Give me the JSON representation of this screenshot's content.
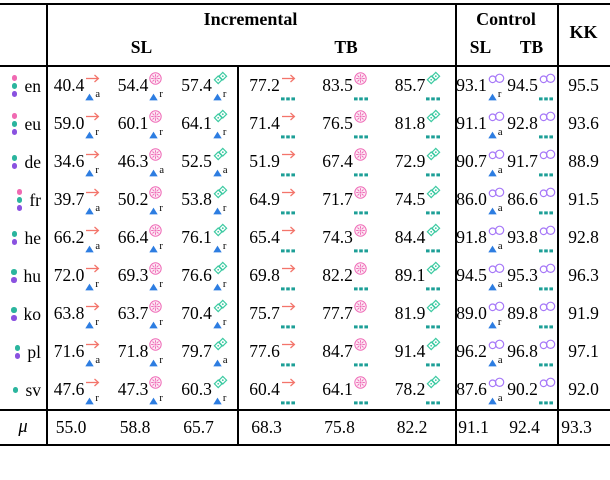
{
  "header": {
    "incremental": "Incremental",
    "control": "Control",
    "kk": "KK",
    "sl1": "SL",
    "tb1": "TB",
    "sl2": "SL",
    "tb2": "TB"
  },
  "colors": {
    "pink": "#f06ab2",
    "teal": "#2bb59e",
    "purple": "#8a52e0",
    "arrow": "#f3756b",
    "flower": "#ef6db8",
    "diamond": "#3dcaa2",
    "loop": "#a678f8",
    "triangle": "#2d7de1",
    "dashes": "#1d9f97"
  },
  "icons": {
    "arrow-icon": "→",
    "flower-icon": "✳",
    "diamond-icon": "❖",
    "loop-icon": "➿",
    "triangle-icon": "▲",
    "dashes-icon": "┅"
  },
  "rows": [
    {
      "lang": "en",
      "dots": [
        "pink",
        "teal",
        "purple"
      ],
      "cells": [
        {
          "v": "40.4",
          "sup": "arrow",
          "sub": "triangle",
          "letter": "a"
        },
        {
          "v": "54.4",
          "sup": "flower",
          "sub": "triangle",
          "letter": "r"
        },
        {
          "v": "57.4",
          "sup": "diamond",
          "sub": "triangle",
          "letter": "r"
        },
        {
          "v": "77.2",
          "sup": "arrow",
          "sub": "dashes"
        },
        {
          "v": "83.5",
          "sup": "flower",
          "sub": "dashes"
        },
        {
          "v": "85.7",
          "sup": "diamond",
          "sub": "dashes"
        },
        {
          "v": "93.1",
          "sup": "loop",
          "sub": "triangle",
          "letter": "r"
        },
        {
          "v": "94.5",
          "sup": "loop",
          "sub": "dashes"
        },
        {
          "v": "95.5"
        }
      ]
    },
    {
      "lang": "eu",
      "dots": [
        "pink",
        "teal",
        "purple"
      ],
      "cells": [
        {
          "v": "59.0",
          "sup": "arrow",
          "sub": "triangle",
          "letter": "r"
        },
        {
          "v": "60.1",
          "sup": "flower",
          "sub": "triangle",
          "letter": "r"
        },
        {
          "v": "64.1",
          "sup": "diamond",
          "sub": "triangle",
          "letter": "r"
        },
        {
          "v": "71.4",
          "sup": "arrow",
          "sub": "dashes"
        },
        {
          "v": "76.5",
          "sup": "flower",
          "sub": "dashes"
        },
        {
          "v": "81.8",
          "sup": "diamond",
          "sub": "dashes"
        },
        {
          "v": "91.1",
          "sup": "loop",
          "sub": "triangle",
          "letter": "a"
        },
        {
          "v": "92.8",
          "sup": "loop",
          "sub": "dashes"
        },
        {
          "v": "93.6"
        }
      ]
    },
    {
      "lang": "de",
      "dots": [
        "teal",
        "purple"
      ],
      "cells": [
        {
          "v": "34.6",
          "sup": "arrow",
          "sub": "triangle",
          "letter": "r"
        },
        {
          "v": "46.3",
          "sup": "flower",
          "sub": "triangle",
          "letter": "a"
        },
        {
          "v": "52.5",
          "sup": "diamond",
          "sub": "triangle",
          "letter": "a"
        },
        {
          "v": "51.9",
          "sup": "arrow",
          "sub": "dashes"
        },
        {
          "v": "67.4",
          "sup": "flower",
          "sub": "dashes"
        },
        {
          "v": "72.9",
          "sup": "diamond",
          "sub": "dashes"
        },
        {
          "v": "90.7",
          "sup": "loop",
          "sub": "triangle",
          "letter": "a"
        },
        {
          "v": "91.7",
          "sup": "loop",
          "sub": "dashes"
        },
        {
          "v": "88.9"
        }
      ]
    },
    {
      "lang": "fr",
      "dots": [
        "pink",
        "teal",
        "purple"
      ],
      "cells": [
        {
          "v": "39.7",
          "sup": "arrow",
          "sub": "triangle",
          "letter": "a"
        },
        {
          "v": "50.2",
          "sup": "flower",
          "sub": "triangle",
          "letter": "r"
        },
        {
          "v": "53.8",
          "sup": "diamond",
          "sub": "triangle",
          "letter": "r"
        },
        {
          "v": "64.9",
          "sup": "arrow",
          "sub": "dashes"
        },
        {
          "v": "71.7",
          "sup": "flower",
          "sub": "dashes"
        },
        {
          "v": "74.5",
          "sup": "diamond",
          "sub": "dashes"
        },
        {
          "v": "86.0",
          "sup": "loop",
          "sub": "triangle",
          "letter": "a"
        },
        {
          "v": "86.6",
          "sup": "loop",
          "sub": "dashes"
        },
        {
          "v": "91.5"
        }
      ]
    },
    {
      "lang": "he",
      "dots": [
        "teal",
        "purple"
      ],
      "cells": [
        {
          "v": "66.2",
          "sup": "arrow",
          "sub": "triangle",
          "letter": "a"
        },
        {
          "v": "66.4",
          "sup": "flower",
          "sub": "triangle",
          "letter": "r"
        },
        {
          "v": "76.1",
          "sup": "diamond",
          "sub": "triangle",
          "letter": "r"
        },
        {
          "v": "65.4",
          "sup": "arrow",
          "sub": "dashes"
        },
        {
          "v": "74.3",
          "sup": "flower",
          "sub": "dashes"
        },
        {
          "v": "84.4",
          "sup": "diamond",
          "sub": "dashes"
        },
        {
          "v": "91.8",
          "sup": "loop",
          "sub": "triangle",
          "letter": "a"
        },
        {
          "v": "93.8",
          "sup": "loop",
          "sub": "dashes"
        },
        {
          "v": "92.8"
        }
      ]
    },
    {
      "lang": "hu",
      "dots": [
        "teal",
        "purple"
      ],
      "cells": [
        {
          "v": "72.0",
          "sup": "arrow",
          "sub": "triangle",
          "letter": "r"
        },
        {
          "v": "69.3",
          "sup": "flower",
          "sub": "triangle",
          "letter": "r"
        },
        {
          "v": "76.6",
          "sup": "diamond",
          "sub": "triangle",
          "letter": "r"
        },
        {
          "v": "69.8",
          "sup": "arrow",
          "sub": "dashes"
        },
        {
          "v": "82.2",
          "sup": "flower",
          "sub": "dashes"
        },
        {
          "v": "89.1",
          "sup": "diamond",
          "sub": "dashes"
        },
        {
          "v": "94.5",
          "sup": "loop",
          "sub": "triangle",
          "letter": "a"
        },
        {
          "v": "95.3",
          "sup": "loop",
          "sub": "dashes"
        },
        {
          "v": "96.3"
        }
      ]
    },
    {
      "lang": "ko",
      "dots": [
        "teal",
        "purple"
      ],
      "cells": [
        {
          "v": "63.8",
          "sup": "arrow",
          "sub": "triangle",
          "letter": "r"
        },
        {
          "v": "63.7",
          "sup": "flower",
          "sub": "triangle",
          "letter": "r"
        },
        {
          "v": "70.4",
          "sup": "diamond",
          "sub": "triangle",
          "letter": "r"
        },
        {
          "v": "75.7",
          "sup": "arrow",
          "sub": "dashes"
        },
        {
          "v": "77.7",
          "sup": "flower",
          "sub": "dashes"
        },
        {
          "v": "81.9",
          "sup": "diamond",
          "sub": "dashes"
        },
        {
          "v": "89.0",
          "sup": "loop",
          "sub": "triangle",
          "letter": "r"
        },
        {
          "v": "89.8",
          "sup": "loop",
          "sub": "dashes"
        },
        {
          "v": "91.9"
        }
      ]
    },
    {
      "lang": "pl",
      "dots": [
        "teal",
        "purple"
      ],
      "cells": [
        {
          "v": "71.6",
          "sup": "arrow",
          "sub": "triangle",
          "letter": "a"
        },
        {
          "v": "71.8",
          "sup": "flower",
          "sub": "triangle",
          "letter": "r"
        },
        {
          "v": "79.7",
          "sup": "diamond",
          "sub": "triangle",
          "letter": "a"
        },
        {
          "v": "77.6",
          "sup": "arrow",
          "sub": "dashes"
        },
        {
          "v": "84.7",
          "sup": "flower",
          "sub": "dashes"
        },
        {
          "v": "91.4",
          "sup": "diamond",
          "sub": "dashes"
        },
        {
          "v": "96.2",
          "sup": "loop",
          "sub": "triangle",
          "letter": "a"
        },
        {
          "v": "96.8",
          "sup": "loop",
          "sub": "dashes"
        },
        {
          "v": "97.1"
        }
      ]
    },
    {
      "lang": "sv",
      "dots": [
        "teal"
      ],
      "cells": [
        {
          "v": "47.6",
          "sup": "arrow",
          "sub": "triangle",
          "letter": "r"
        },
        {
          "v": "47.3",
          "sup": "flower",
          "sub": "triangle",
          "letter": "r"
        },
        {
          "v": "60.3",
          "sup": "diamond",
          "sub": "triangle",
          "letter": "r"
        },
        {
          "v": "60.4",
          "sup": "arrow",
          "sub": "dashes"
        },
        {
          "v": "64.1",
          "sup": "flower",
          "sub": "dashes"
        },
        {
          "v": "78.2",
          "sup": "diamond",
          "sub": "dashes"
        },
        {
          "v": "87.6",
          "sup": "loop",
          "sub": "triangle",
          "letter": "a"
        },
        {
          "v": "90.2",
          "sup": "loop",
          "sub": "dashes"
        },
        {
          "v": "92.0"
        }
      ]
    }
  ],
  "mean": {
    "label": "μ",
    "values": [
      "55.0",
      "58.8",
      "65.7",
      "68.3",
      "75.8",
      "82.2",
      "91.1",
      "92.4",
      "93.3"
    ]
  }
}
